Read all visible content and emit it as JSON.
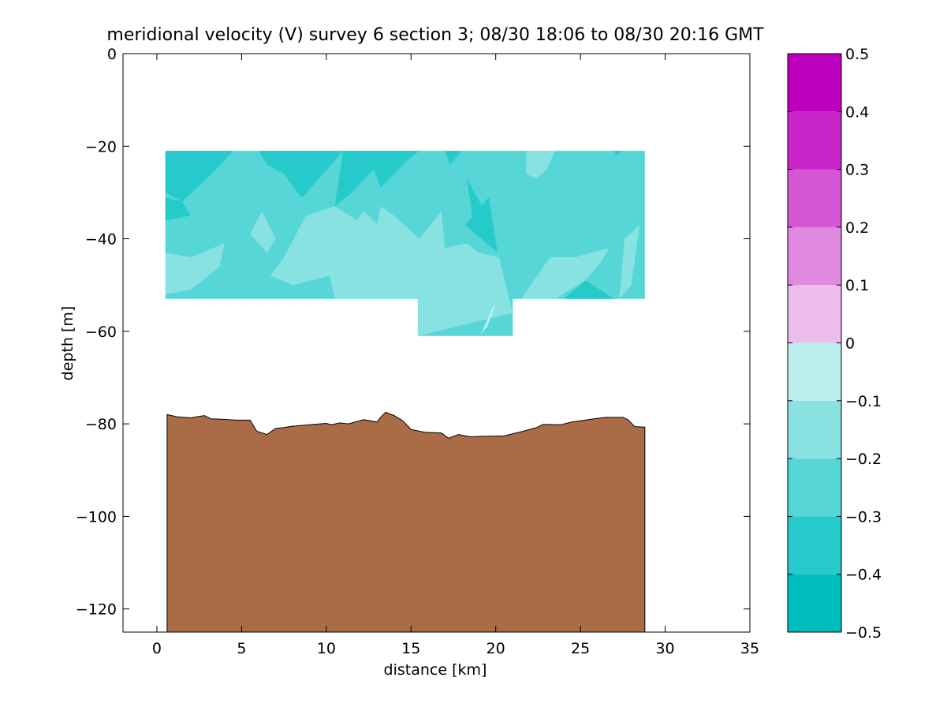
{
  "chart_data": {
    "type": "heatmap",
    "title": "meridional velocity (V) survey 6 section 3; 08/30 18:06 to 08/30 20:16 GMT",
    "xlabel": "distance [km]",
    "ylabel": "depth [m]",
    "xlim": [
      -2,
      35
    ],
    "ylim": [
      -125,
      0
    ],
    "xticks": [
      0,
      5,
      10,
      15,
      20,
      25,
      30,
      35
    ],
    "yticks": [
      0,
      -20,
      -40,
      -60,
      -80,
      -100,
      -120
    ],
    "grid": false,
    "colorbar": {
      "ticks": [
        0.5,
        0.4,
        0.3,
        0.2,
        0.1,
        0,
        -0.1,
        -0.2,
        -0.3,
        -0.4,
        -0.5
      ],
      "levels": [
        {
          "min": -0.5,
          "max": -0.4,
          "color": "#00bebe"
        },
        {
          "min": -0.4,
          "max": -0.3,
          "color": "#26caca"
        },
        {
          "min": -0.3,
          "max": -0.2,
          "color": "#56d6d6"
        },
        {
          "min": -0.2,
          "max": -0.1,
          "color": "#89e2e2"
        },
        {
          "min": -0.1,
          "max": 0.0,
          "color": "#bdeeee"
        },
        {
          "min": 0.0,
          "max": 0.1,
          "color": "#ecbdec"
        },
        {
          "min": 0.1,
          "max": 0.2,
          "color": "#e089e0"
        },
        {
          "min": 0.2,
          "max": 0.3,
          "color": "#d456d4"
        },
        {
          "min": 0.3,
          "max": 0.4,
          "color": "#c926c9"
        },
        {
          "min": 0.4,
          "max": 0.5,
          "color": "#be00be"
        }
      ]
    },
    "data_region": {
      "x_range": [
        0.5,
        28.8
      ],
      "depth_range": [
        -21,
        -53
      ],
      "deep_extension": {
        "x_range": [
          15.4,
          21
        ],
        "depth_range": [
          -53,
          -61
        ]
      },
      "background_color": "#56d6d6"
    },
    "patches": [
      {
        "level": -0.35,
        "points": [
          [
            0.5,
            -21
          ],
          [
            4.5,
            -21
          ],
          [
            3.5,
            -25
          ],
          [
            1.5,
            -32
          ],
          [
            0.5,
            -30
          ]
        ]
      },
      {
        "level": -0.35,
        "points": [
          [
            0.5,
            -31
          ],
          [
            1.5,
            -32
          ],
          [
            2,
            -35
          ],
          [
            0.5,
            -36
          ]
        ]
      },
      {
        "level": -0.35,
        "points": [
          [
            6,
            -21
          ],
          [
            11,
            -21
          ],
          [
            9.8,
            -26
          ],
          [
            8.5,
            -31
          ],
          [
            7.5,
            -26
          ],
          [
            6.5,
            -24
          ]
        ]
      },
      {
        "level": -0.35,
        "points": [
          [
            7.8,
            -24
          ],
          [
            8.6,
            -31
          ],
          [
            9.8,
            -26
          ],
          [
            9.4,
            -23
          ]
        ]
      },
      {
        "level": -0.35,
        "points": [
          [
            11,
            -21
          ],
          [
            15.5,
            -21
          ],
          [
            14.8,
            -23
          ],
          [
            13.2,
            -29
          ],
          [
            12.8,
            -25
          ],
          [
            11.5,
            -30
          ],
          [
            10.5,
            -33
          ]
        ]
      },
      {
        "level": -0.35,
        "points": [
          [
            17,
            -21
          ],
          [
            18,
            -21
          ],
          [
            17.3,
            -24
          ]
        ]
      },
      {
        "level": -0.35,
        "points": [
          [
            18.3,
            -27
          ],
          [
            19.2,
            -33
          ],
          [
            18.7,
            -38
          ],
          [
            18.5,
            -32
          ]
        ]
      },
      {
        "level": -0.35,
        "points": [
          [
            19.6,
            -31
          ],
          [
            20.1,
            -43
          ],
          [
            18.2,
            -37
          ]
        ]
      },
      {
        "level": -0.35,
        "points": [
          [
            27,
            -21
          ],
          [
            27.5,
            -21
          ],
          [
            27.1,
            -22
          ]
        ]
      },
      {
        "level": -0.35,
        "points": [
          [
            24,
            -53
          ],
          [
            25.3,
            -49
          ],
          [
            27,
            -53
          ]
        ]
      },
      {
        "level": -0.15,
        "points": [
          [
            0.5,
            -43
          ],
          [
            2,
            -44
          ],
          [
            4,
            -41
          ],
          [
            3.7,
            -46
          ],
          [
            2,
            -51
          ],
          [
            0.5,
            -52
          ]
        ]
      },
      {
        "level": -0.15,
        "points": [
          [
            5.5,
            -39
          ],
          [
            6.2,
            -34
          ],
          [
            7,
            -40
          ],
          [
            6.5,
            -43
          ]
        ]
      },
      {
        "level": -0.15,
        "points": [
          [
            6.7,
            -48
          ],
          [
            7.5,
            -44
          ],
          [
            8.8,
            -35
          ],
          [
            10.5,
            -33
          ],
          [
            11.8,
            -36
          ],
          [
            12.2,
            -34
          ],
          [
            13,
            -37
          ],
          [
            13.2,
            -33
          ],
          [
            14,
            -35
          ],
          [
            15.5,
            -40
          ],
          [
            16.8,
            -34
          ],
          [
            17,
            -42
          ],
          [
            18.3,
            -41
          ],
          [
            19,
            -43
          ],
          [
            20.2,
            -44
          ],
          [
            20.6,
            -50
          ],
          [
            21,
            -56
          ],
          [
            15.4,
            -61
          ],
          [
            15.4,
            -53
          ],
          [
            10.5,
            -53
          ],
          [
            10.2,
            -48
          ],
          [
            8,
            -50
          ]
        ]
      },
      {
        "level": -0.15,
        "points": [
          [
            21.8,
            -21
          ],
          [
            23.5,
            -21
          ],
          [
            23,
            -25
          ],
          [
            22.4,
            -27
          ],
          [
            21.8,
            -26
          ]
        ]
      },
      {
        "level": -0.15,
        "points": [
          [
            21.5,
            -53
          ],
          [
            23.2,
            -44
          ],
          [
            24.7,
            -44
          ],
          [
            25.6,
            -43
          ],
          [
            26.7,
            -42
          ],
          [
            27.4,
            -38
          ],
          [
            26.2,
            -45
          ],
          [
            25.3,
            -49
          ],
          [
            23.5,
            -53
          ]
        ]
      },
      {
        "level": -0.15,
        "points": [
          [
            27.3,
            -53
          ],
          [
            27.6,
            -40
          ],
          [
            28.5,
            -37
          ],
          [
            28,
            -50
          ]
        ]
      },
      {
        "level": -0.05,
        "points": [
          [
            19.2,
            -60
          ],
          [
            19.8,
            -55
          ],
          [
            20,
            -54
          ],
          [
            19.5,
            -59
          ],
          [
            19,
            -61
          ]
        ]
      }
    ],
    "bathymetry": {
      "color": "#aa6c46",
      "x": [
        0.6,
        1.2,
        2,
        2.8,
        3.2,
        3.8,
        4.7,
        5.5,
        5.9,
        6.5,
        7,
        7.5,
        8,
        9,
        10,
        10.3,
        10.8,
        11.3,
        11.8,
        12.2,
        13,
        13.2,
        13.5,
        14,
        14.5,
        15,
        15.8,
        16.8,
        17.2,
        17.8,
        18.5,
        19,
        20.5,
        21.5,
        22.4,
        22.8,
        23.8,
        24.5,
        25.8,
        26.5,
        27.5,
        27.8,
        28.2,
        28.8
      ],
      "depth": [
        -78,
        -78.5,
        -78.7,
        -78.2,
        -78.9,
        -79,
        -79.2,
        -79.2,
        -81.6,
        -82.3,
        -81,
        -80.8,
        -80.5,
        -80.2,
        -79.9,
        -80.2,
        -79.8,
        -80,
        -79.5,
        -79.1,
        -79.6,
        -78.6,
        -77.5,
        -78.2,
        -79.3,
        -81.2,
        -81.8,
        -82,
        -83.1,
        -82.3,
        -82.8,
        -82.7,
        -82.6,
        -81.7,
        -80.8,
        -80.1,
        -80.2,
        -79.6,
        -78.9,
        -78.6,
        -78.6,
        -79.1,
        -80.6,
        -80.7
      ]
    }
  }
}
